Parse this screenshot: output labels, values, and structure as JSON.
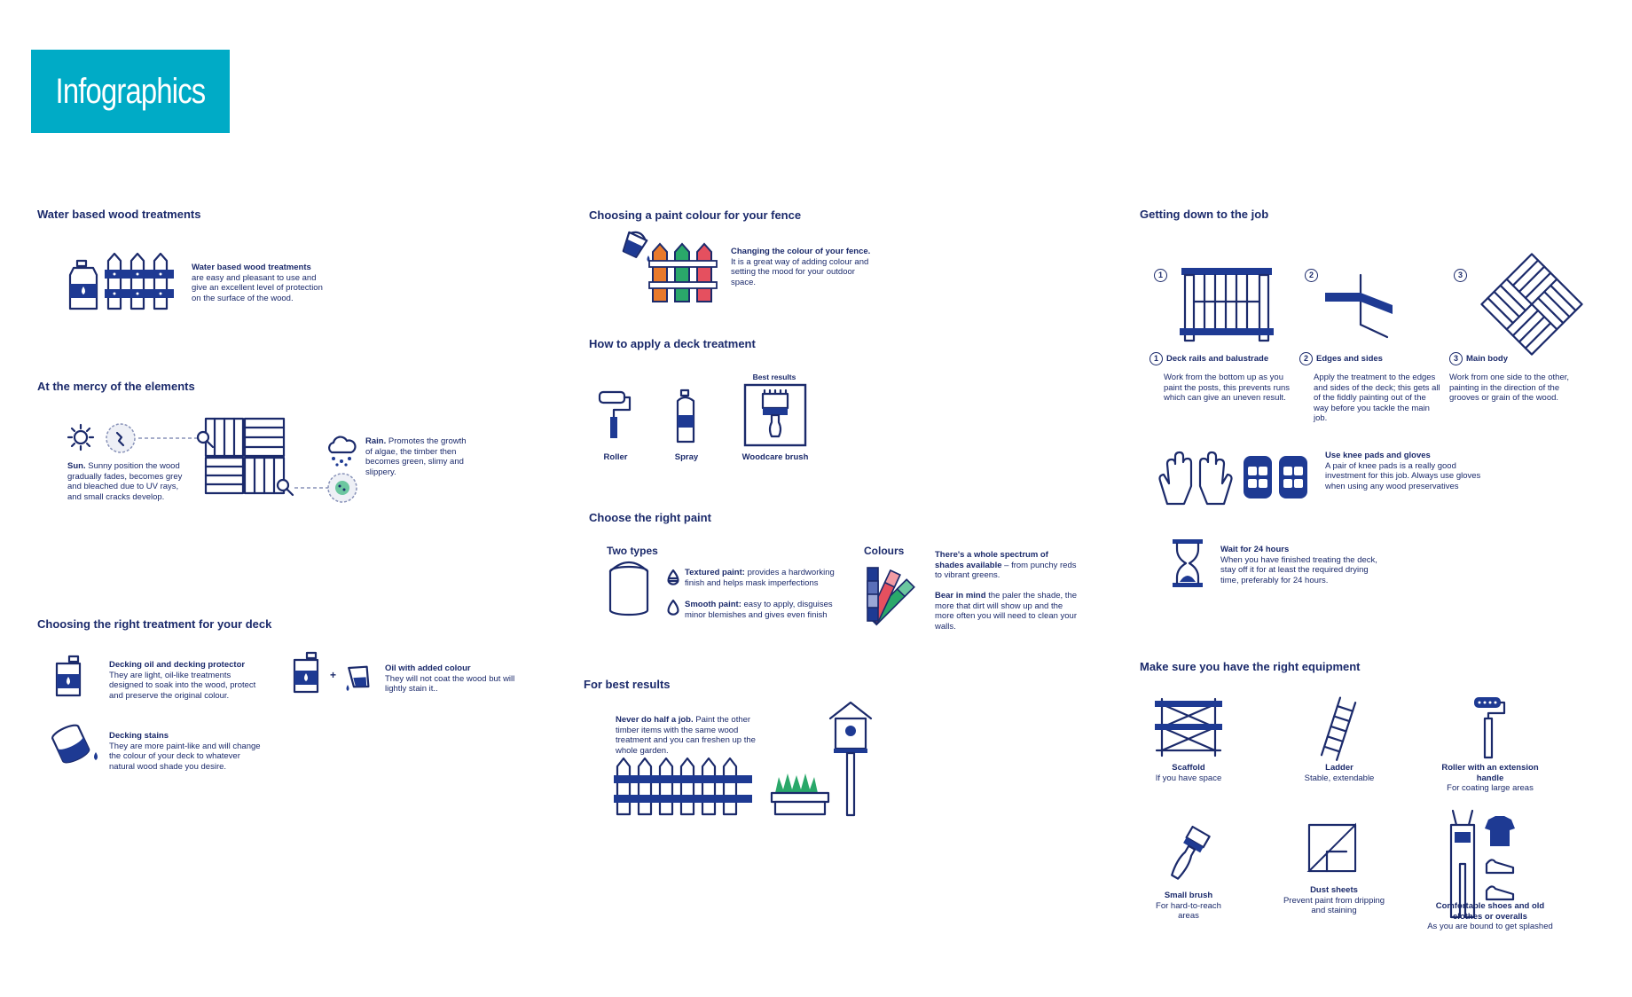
{
  "banner": {
    "title": "Infographics"
  },
  "col1": {
    "water": {
      "title": "Water based wood treatments",
      "body_bold": "Water based wood treatments",
      "body": "are easy and pleasant to use and give an excellent level of protection on the surface of the wood."
    },
    "elements": {
      "title": "At the mercy of the elements",
      "sun_bold": "Sun.",
      "sun": "Sunny position the wood gradually fades, becomes grey and bleached due to UV rays, and small cracks develop.",
      "rain_bold": "Rain.",
      "rain": "Promotes the growth of algae, the timber then becomes green, slimy and slippery."
    },
    "treatment": {
      "title": "Choosing the right treatment for your deck",
      "oil_title": "Decking oil and decking protector",
      "oil_body": "They are light, oil-like treatments designed to soak into the wood, protect and preserve the original colour.",
      "colour_title": "Oil with added colour",
      "colour_body": "They will not coat the wood but will lightly stain it..",
      "plus": "+",
      "stain_title": "Decking stains",
      "stain_body": "They are more paint-like and will change the colour of your deck to whatever natural wood shade you desire."
    }
  },
  "col2": {
    "fence_colour": {
      "title": "Choosing a paint colour for your fence",
      "body_bold": "Changing the colour of your fence.",
      "body": "It is a great way of adding colour and setting the mood for your outdoor space."
    },
    "apply": {
      "title": "How to apply a deck treatment",
      "best": "Best results",
      "roller": "Roller",
      "spray": "Spray",
      "brush": "Woodcare brush"
    },
    "paint": {
      "title": "Choose the right paint",
      "two_types": "Two types",
      "colours": "Colours",
      "textured_bold": "Textured paint:",
      "textured": "provides a hardworking finish and helps mask imperfections",
      "smooth_bold": "Smooth paint:",
      "smooth": "easy to apply, disguises minor blemishes and gives even finish",
      "spectrum_bold": "There's a whole spectrum of shades available",
      "spectrum": "– from punchy reds to vibrant greens.",
      "bear_bold": "Bear in mind",
      "bear": "the paler the shade, the more that dirt will show up and the more often you will need to clean your walls."
    },
    "best": {
      "title": "For best results",
      "body_bold": "Never do half a job.",
      "body": "Paint the other timber items with the same wood treatment and you can freshen up the whole garden."
    }
  },
  "col3": {
    "job": {
      "title": "Getting down to the job",
      "n1": "1",
      "n2": "2",
      "n3": "3",
      "s1_title": "Deck rails and balustrade",
      "s1_body": "Work from the bottom up as you paint the posts, this prevents runs which can give an uneven result.",
      "s2_title": "Edges and sides",
      "s2_body": "Apply the treatment to the edges and sides of the deck; this gets all of the fiddly painting out of the way before you tackle the main job.",
      "s3_title": "Main body",
      "s3_body": "Work from one side to the other, painting in the direction of the grooves or grain of the wood.",
      "knee_title": "Use knee pads and gloves",
      "knee_body": "A pair of knee pads is a really good investment for this job. Always use gloves when using any wood preservatives",
      "wait_title": "Wait for 24 hours",
      "wait_body": "When you have finished treating the deck, stay off it for at least the required drying time, preferably for 24 hours."
    },
    "equip": {
      "title": "Make sure you have the right equipment",
      "scaffold_t": "Scaffold",
      "scaffold_b": "If you have space",
      "ladder_t": "Ladder",
      "ladder_b": "Stable, extendable",
      "roller_t": "Roller with an extension handle",
      "roller_b": "For coating large areas",
      "brush_t": "Small brush",
      "brush_b": "For hard-to-reach areas",
      "dust_t": "Dust sheets",
      "dust_b": "Prevent paint from dripping and staining",
      "shoes_t": "Comfortable shoes and old clothes or overalls",
      "shoes_b": "As you are bound to get splashed"
    }
  },
  "colors": {
    "banner": "#00abc6",
    "navy": "#1b2a6b",
    "blue": "#1e3a93",
    "orange": "#e8792b",
    "green": "#2aa86a",
    "red": "#e5505f"
  }
}
